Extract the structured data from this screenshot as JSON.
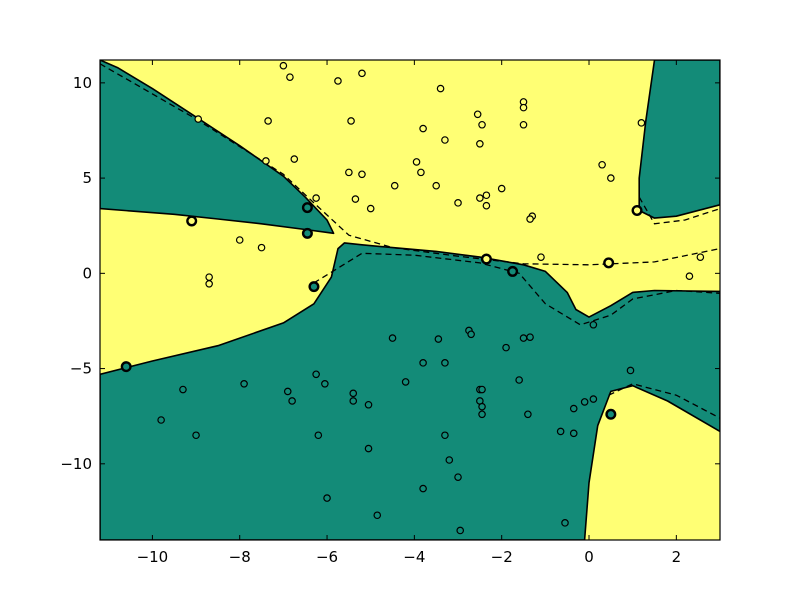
{
  "chart_data": {
    "type": "scatter",
    "title": "",
    "xlabel": "",
    "ylabel": "",
    "xlim": [
      -11.2,
      3.0
    ],
    "ylim": [
      -14.0,
      11.2
    ],
    "x_ticks": [
      -10,
      -8,
      -6,
      -4,
      -2,
      0,
      2
    ],
    "y_ticks": [
      10,
      5,
      0,
      -5,
      -10
    ],
    "x_tick_labels": [
      "−10",
      "−8",
      "−6",
      "−4",
      "−2",
      "0",
      "2"
    ],
    "y_tick_labels": [
      "10",
      "5",
      "0",
      "−5",
      "−10"
    ],
    "grid": false,
    "legend": "none",
    "colors": {
      "region_positive": "#ffff74",
      "region_negative": "#138b78",
      "boundary": "#000000",
      "yellow_point_fill": "#ffff74",
      "green_point_fill": "#138b78"
    },
    "decision_regions": {
      "green": [
        [
          [
            -11.2,
            11.2
          ],
          [
            -10.8,
            10.8
          ],
          [
            -10.0,
            9.7
          ],
          [
            -9.0,
            8.2
          ],
          [
            -8.0,
            6.7
          ],
          [
            -7.0,
            5.1
          ],
          [
            -6.5,
            4.0
          ],
          [
            -6.0,
            2.8
          ],
          [
            -5.85,
            2.1
          ],
          [
            -6.5,
            2.3
          ],
          [
            -7.5,
            2.6
          ],
          [
            -8.5,
            2.85
          ],
          [
            -9.5,
            3.1
          ],
          [
            -11.2,
            3.4
          ]
        ],
        [
          [
            -11.2,
            -5.3
          ],
          [
            -10.0,
            -4.6
          ],
          [
            -8.5,
            -3.8
          ],
          [
            -7.0,
            -2.6
          ],
          [
            -6.3,
            -1.6
          ],
          [
            -5.9,
            -0.2
          ],
          [
            -5.75,
            1.3
          ],
          [
            -5.6,
            1.6
          ],
          [
            -5.2,
            1.5
          ],
          [
            -4.5,
            1.35
          ],
          [
            -3.5,
            1.15
          ],
          [
            -2.5,
            0.85
          ],
          [
            -1.5,
            0.45
          ],
          [
            -1.0,
            0.1
          ],
          [
            -0.5,
            -1.0
          ],
          [
            -0.3,
            -1.9
          ],
          [
            0.0,
            -2.3
          ],
          [
            0.5,
            -1.7
          ],
          [
            1.0,
            -1.0
          ],
          [
            1.5,
            -0.9
          ],
          [
            3.0,
            -0.95
          ],
          [
            3.0,
            -8.3
          ],
          [
            1.8,
            -6.7
          ],
          [
            1.0,
            -5.9
          ],
          [
            0.5,
            -6.2
          ],
          [
            0.2,
            -8.0
          ],
          [
            0.0,
            -11.0
          ],
          [
            -0.1,
            -14.0
          ],
          [
            -11.2,
            -14.0
          ]
        ],
        [
          [
            1.5,
            11.2
          ],
          [
            3.0,
            11.2
          ],
          [
            3.0,
            3.6
          ],
          [
            2.0,
            3.0
          ],
          [
            1.5,
            2.9
          ],
          [
            1.15,
            3.3
          ],
          [
            1.15,
            5.0
          ],
          [
            1.3,
            8.0
          ]
        ]
      ],
      "dashed_margins": [
        [
          [
            -11.2,
            11.0
          ],
          [
            -9.0,
            8.1
          ],
          [
            -7.0,
            5.2
          ],
          [
            -6.3,
            3.7
          ],
          [
            -5.5,
            2.0
          ],
          [
            -4.5,
            1.35
          ],
          [
            -3.0,
            0.9
          ],
          [
            -1.5,
            0.5
          ],
          [
            0.0,
            0.45
          ],
          [
            1.5,
            0.6
          ],
          [
            3.0,
            1.3
          ]
        ],
        [
          [
            -6.3,
            -0.5
          ],
          [
            -5.2,
            1.05
          ],
          [
            -4.0,
            0.95
          ],
          [
            -2.5,
            0.55
          ],
          [
            -1.6,
            0.0
          ],
          [
            -1.0,
            -1.6
          ],
          [
            -0.2,
            -2.7
          ],
          [
            0.5,
            -2.2
          ],
          [
            1.0,
            -1.35
          ],
          [
            2.0,
            -0.9
          ],
          [
            3.0,
            -1.05
          ]
        ],
        [
          [
            1.15,
            4.0
          ],
          [
            1.5,
            2.6
          ],
          [
            2.2,
            2.8
          ],
          [
            3.0,
            3.4
          ]
        ],
        [
          [
            0.45,
            -6.4
          ],
          [
            1.0,
            -5.8
          ],
          [
            2.0,
            -6.4
          ],
          [
            3.0,
            -7.6
          ]
        ]
      ]
    },
    "points": {
      "yellow_class": [
        [
          -7.0,
          10.9
        ],
        [
          -6.85,
          10.3
        ],
        [
          -5.75,
          10.1
        ],
        [
          -5.2,
          10.5
        ],
        [
          -3.4,
          9.7
        ],
        [
          -8.95,
          8.1
        ],
        [
          -7.35,
          8.0
        ],
        [
          -5.45,
          8.0
        ],
        [
          -3.8,
          7.6
        ],
        [
          -3.3,
          7.0
        ],
        [
          -2.55,
          8.35
        ],
        [
          -2.45,
          7.8
        ],
        [
          -2.5,
          6.8
        ],
        [
          -1.5,
          9.0
        ],
        [
          -1.5,
          8.7
        ],
        [
          -1.5,
          7.8
        ],
        [
          -7.4,
          5.9
        ],
        [
          -6.75,
          6.0
        ],
        [
          -5.5,
          5.3
        ],
        [
          -5.2,
          5.2
        ],
        [
          -3.95,
          5.85
        ],
        [
          -3.85,
          5.3
        ],
        [
          -4.45,
          4.6
        ],
        [
          -3.5,
          4.6
        ],
        [
          -5.35,
          3.9
        ],
        [
          -5.0,
          3.4
        ],
        [
          -6.25,
          3.95
        ],
        [
          -2.0,
          4.45
        ],
        [
          -2.5,
          3.95
        ],
        [
          -2.35,
          4.1
        ],
        [
          -2.35,
          3.55
        ],
        [
          -3.0,
          3.7
        ],
        [
          -1.3,
          3.0
        ],
        [
          -1.35,
          2.85
        ],
        [
          0.3,
          5.7
        ],
        [
          0.5,
          5.0
        ],
        [
          1.2,
          7.9
        ],
        [
          -8.0,
          1.75
        ],
        [
          -7.5,
          1.35
        ],
        [
          -8.7,
          -0.2
        ],
        [
          -8.7,
          -0.55
        ],
        [
          -1.1,
          0.85
        ],
        [
          2.55,
          0.85
        ],
        [
          2.3,
          -0.15
        ]
      ],
      "green_class": [
        [
          -9.3,
          -6.1
        ],
        [
          -9.8,
          -7.7
        ],
        [
          -9.0,
          -8.5
        ],
        [
          -7.9,
          -5.8
        ],
        [
          -6.9,
          -6.2
        ],
        [
          -6.8,
          -6.7
        ],
        [
          -6.25,
          -5.3
        ],
        [
          -6.05,
          -5.8
        ],
        [
          -6.2,
          -8.5
        ],
        [
          -6.0,
          -11.8
        ],
        [
          -5.4,
          -6.3
        ],
        [
          -5.4,
          -6.7
        ],
        [
          -5.05,
          -6.9
        ],
        [
          -5.05,
          -9.2
        ],
        [
          -4.5,
          -3.4
        ],
        [
          -4.2,
          -5.7
        ],
        [
          -4.85,
          -12.7
        ],
        [
          -3.8,
          -4.7
        ],
        [
          -3.8,
          -11.3
        ],
        [
          -3.45,
          -3.45
        ],
        [
          -3.3,
          -4.7
        ],
        [
          -3.3,
          -8.5
        ],
        [
          -3.2,
          -9.8
        ],
        [
          -3.0,
          -10.7
        ],
        [
          -2.95,
          -13.5
        ],
        [
          -2.75,
          -3.0
        ],
        [
          -2.7,
          -3.2
        ],
        [
          -2.5,
          -6.1
        ],
        [
          -2.45,
          -6.1
        ],
        [
          -2.5,
          -6.7
        ],
        [
          -2.45,
          -7.0
        ],
        [
          -2.45,
          -7.4
        ],
        [
          -1.9,
          -3.9
        ],
        [
          -1.6,
          -5.6
        ],
        [
          -1.5,
          -3.4
        ],
        [
          -1.35,
          -3.35
        ],
        [
          -1.4,
          -7.4
        ],
        [
          -0.65,
          -8.3
        ],
        [
          -0.35,
          -8.4
        ],
        [
          -0.55,
          -13.1
        ],
        [
          -0.35,
          -7.1
        ],
        [
          0.1,
          -2.7
        ],
        [
          -0.1,
          -6.75
        ],
        [
          0.1,
          -6.6
        ],
        [
          0.95,
          -5.1
        ]
      ],
      "support_vectors": {
        "yellow": [
          [
            -9.1,
            2.75
          ],
          [
            -2.35,
            0.75
          ],
          [
            0.45,
            0.55
          ],
          [
            1.1,
            3.3
          ]
        ],
        "green": [
          [
            -6.45,
            3.45
          ],
          [
            -6.45,
            2.1
          ],
          [
            -6.3,
            -0.7
          ],
          [
            -10.6,
            -4.9
          ],
          [
            -1.75,
            0.1
          ],
          [
            0.5,
            -7.4
          ]
        ]
      }
    }
  }
}
